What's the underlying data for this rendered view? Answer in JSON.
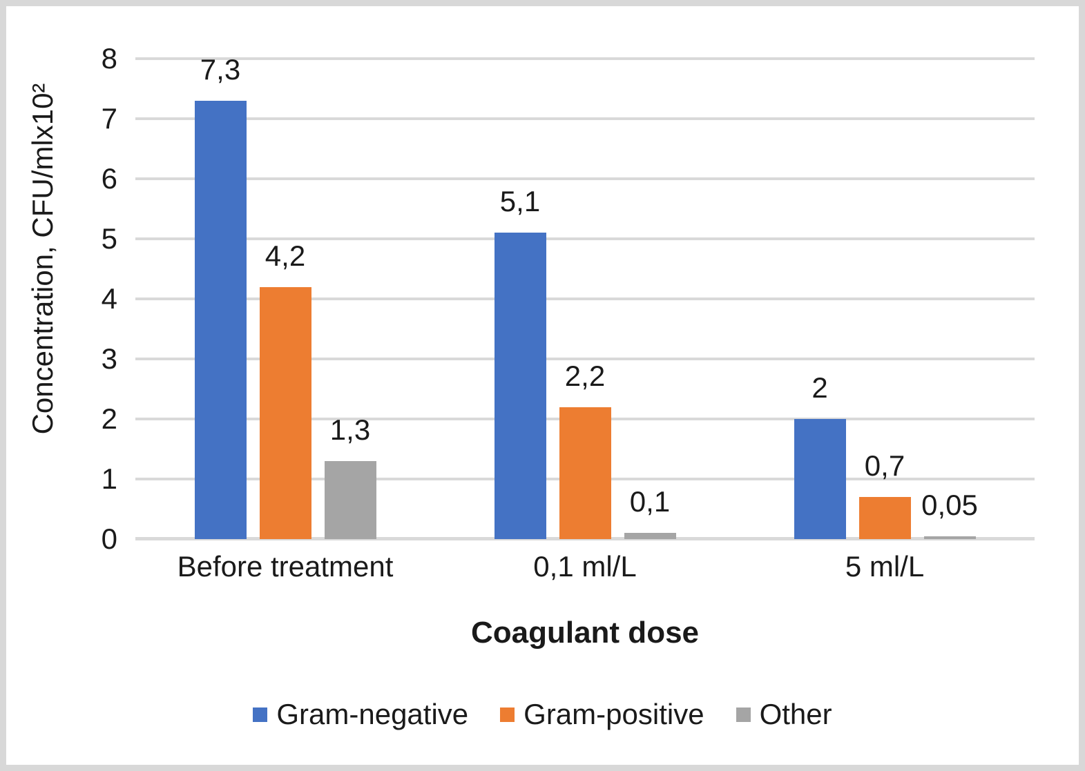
{
  "frame": {
    "background": "#ffffff",
    "border_color": "#d8d8d8"
  },
  "chart_data": {
    "type": "bar",
    "title": "",
    "categories": [
      "Before treatment",
      "0,1 ml/L",
      "5 ml/L"
    ],
    "series": [
      {
        "name": "Gram-negative",
        "color": "#4472c4",
        "values": [
          7.3,
          5.1,
          2.0
        ],
        "value_labels": [
          "7,3",
          "5,1",
          "2"
        ]
      },
      {
        "name": "Gram-positive",
        "color": "#ed7d31",
        "values": [
          4.2,
          2.2,
          0.7
        ],
        "value_labels": [
          "4,2",
          "2,2",
          "0,7"
        ]
      },
      {
        "name": "Other",
        "color": "#a5a5a5",
        "values": [
          1.3,
          0.1,
          0.05
        ],
        "value_labels": [
          "1,3",
          "0,1",
          "0,05"
        ]
      }
    ],
    "xlabel": "Coagulant dose",
    "ylabel": "Concentration, CFU/mlx10²",
    "ylim": [
      0,
      8
    ],
    "yticks": [
      "0",
      "1",
      "2",
      "3",
      "4",
      "5",
      "6",
      "7",
      "8"
    ],
    "grid": "horizontal",
    "gridline_color": "#d9d9d9",
    "legend_position": "bottom",
    "text_color": "#1a1a1a"
  }
}
